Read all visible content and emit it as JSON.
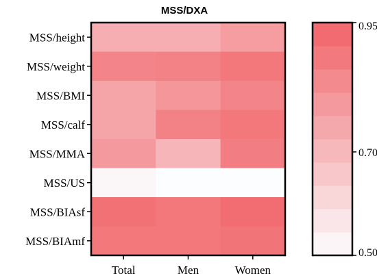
{
  "chart_data": {
    "type": "heatmap",
    "title": "MSS/DXA",
    "columns": [
      "Total",
      "Men",
      "Women"
    ],
    "rows": [
      "MSS/height",
      "MSS/weight",
      "MSS/BMI",
      "MSS/calf",
      "MSS/MMA",
      "MSS/US",
      "MSS/BIAsf",
      "MSS/BIAmf"
    ],
    "values": [
      [
        0.73,
        0.73,
        0.78
      ],
      [
        0.85,
        0.86,
        0.89
      ],
      [
        0.76,
        0.8,
        0.85
      ],
      [
        0.76,
        0.86,
        0.89
      ],
      [
        0.79,
        0.71,
        0.87
      ],
      [
        0.52,
        0.5,
        0.5
      ],
      [
        0.91,
        0.89,
        0.92
      ],
      [
        0.89,
        0.89,
        0.9
      ]
    ],
    "colorbar": {
      "min": 0.5,
      "max": 0.95,
      "ticks": [
        0.95,
        0.7,
        0.5
      ],
      "tick_labels": [
        "0.95",
        "0.70",
        "0.50"
      ],
      "steps": 10,
      "color_low": "#fcfdff",
      "color_high": "#f06368"
    }
  }
}
